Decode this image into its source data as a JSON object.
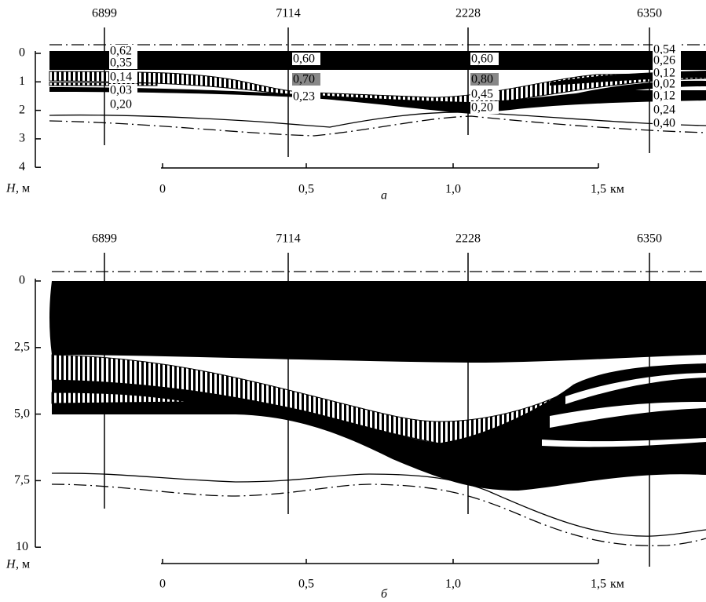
{
  "panels": [
    {
      "label": "а",
      "wells": [
        "6899",
        "7114",
        "2228",
        "6350"
      ],
      "depth_ticks": [
        "0",
        "1",
        "2",
        "3",
        "4"
      ],
      "depth_symbol": "H",
      "depth_unit": ", м",
      "distance_ticks": [
        "0",
        "0,5",
        "1,0",
        "1,5"
      ],
      "distance_unit": "км",
      "thickness_labels": [
        [
          "0,62",
          "0,35",
          "0,14",
          "0,03",
          "0,20"
        ],
        [
          "0,60",
          "0,70",
          "0,23"
        ],
        [
          "0,60",
          "0,80",
          "0,45",
          "0,20"
        ],
        [
          "0,54",
          "0,26",
          "0,12",
          "0,02",
          "0,12",
          "0,24",
          "0,40"
        ]
      ]
    },
    {
      "label": "б",
      "wells": [
        "6899",
        "7114",
        "2228",
        "6350"
      ],
      "depth_ticks": [
        "0",
        "2,5",
        "5,0",
        "7,5",
        "10"
      ],
      "depth_symbol": "H",
      "depth_unit": ", м",
      "distance_ticks": [
        "0",
        "0,5",
        "1,0",
        "1,5"
      ],
      "distance_unit": "км"
    }
  ]
}
